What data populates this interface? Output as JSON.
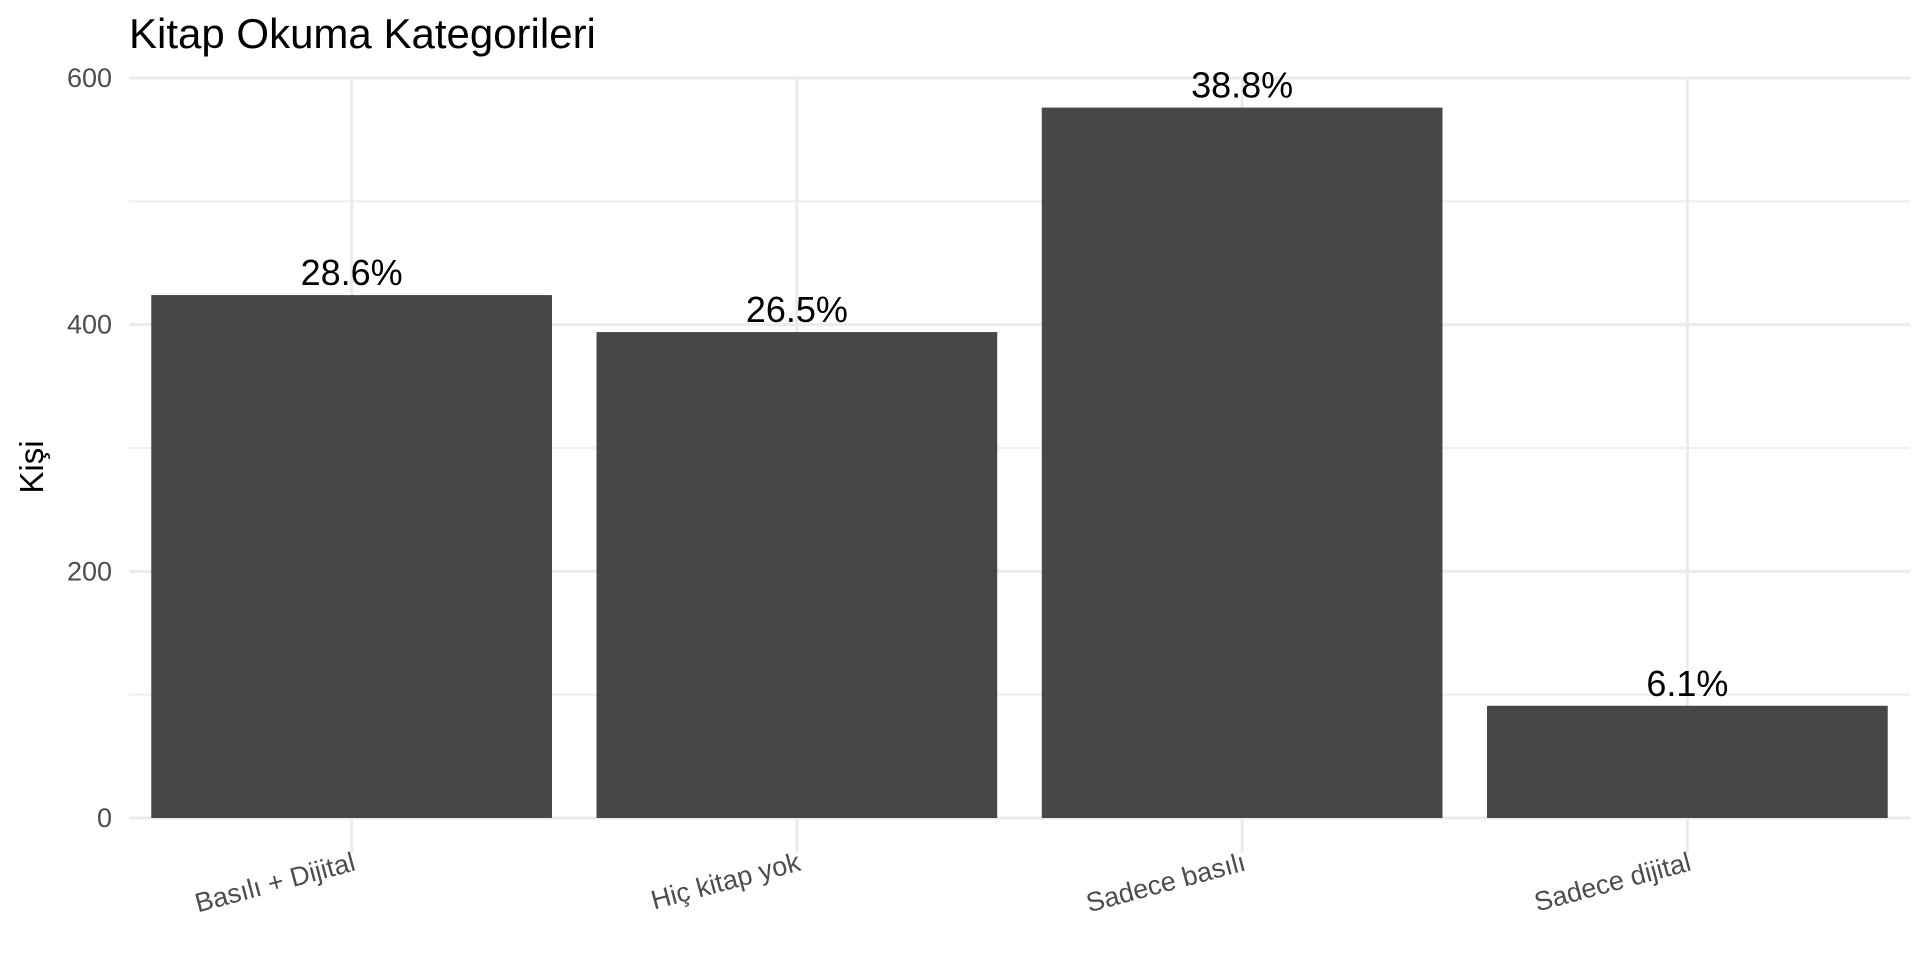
{
  "chart_data": {
    "type": "bar",
    "title": "Kitap Okuma Kategorileri",
    "xlabel": "",
    "ylabel": "Kişi",
    "categories": [
      "Basılı + Dijital",
      "Hiç kitap yok",
      "Sadece basılı",
      "Sadece dijital"
    ],
    "values": [
      424,
      394,
      576,
      91
    ],
    "labels": [
      "28.6%",
      "26.5%",
      "38.8%",
      "6.1%"
    ],
    "ylim": [
      0,
      600
    ],
    "yticks": [
      0,
      200,
      400,
      600
    ],
    "yticks_minor": [
      100,
      300,
      500
    ],
    "grid": true,
    "legend": "none",
    "colors": {
      "bar": "#474747",
      "grid": "#ebebeb",
      "background": "#ffffff"
    }
  }
}
